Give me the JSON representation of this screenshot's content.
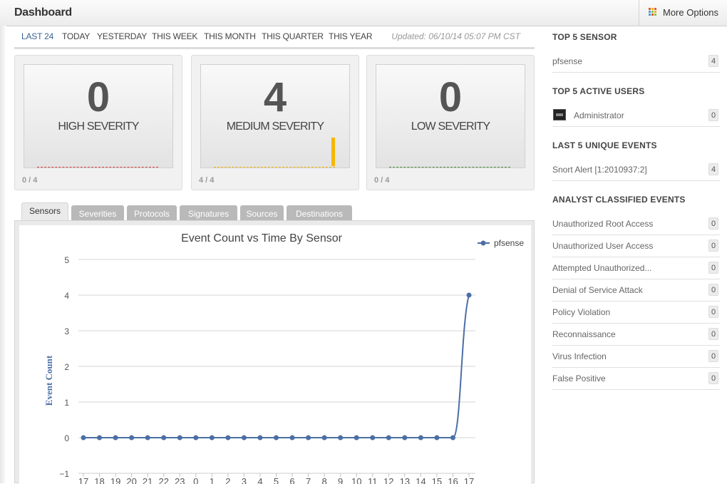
{
  "header": {
    "title": "Dashboard",
    "more_options_label": "More Options",
    "more_options_icon": "grid-icon",
    "grid_colors": [
      "#e05a2b",
      "#f3b21a",
      "#e05a2b",
      "#4f9ad8",
      "#8cc43f",
      "#f3b21a",
      "#4f9ad8",
      "#e05a2b",
      "#8cc43f"
    ]
  },
  "time_nav": {
    "items": [
      "LAST 24",
      "TODAY",
      "YESTERDAY",
      "THIS WEEK",
      "THIS MONTH",
      "THIS QUARTER",
      "THIS YEAR"
    ],
    "active": "LAST 24",
    "updated": "Updated: 06/10/14 05:07 PM CST"
  },
  "severity_cards": [
    {
      "count": "0",
      "label": "HIGH SEVERITY",
      "ratio": "0 / 4",
      "color": "#d84040",
      "fill": 0
    },
    {
      "count": "4",
      "label": "MEDIUM SEVERITY",
      "ratio": "4 / 4",
      "color": "#f5b800",
      "fill": 1
    },
    {
      "count": "0",
      "label": "LOW SEVERITY",
      "ratio": "0 / 4",
      "color": "#4a8a3a",
      "fill": 0
    }
  ],
  "tabs": [
    "Sensors",
    "Severities",
    "Protocols",
    "Signatures",
    "Sources",
    "Destinations"
  ],
  "active_tab": "Sensors",
  "chart_data": {
    "type": "line",
    "title": "Event Count vs Time By Sensor",
    "ylabel": "Event Count",
    "xlabel": "",
    "categories": [
      "17",
      "18",
      "19",
      "20",
      "21",
      "22",
      "23",
      "0",
      "1",
      "2",
      "3",
      "4",
      "5",
      "6",
      "7",
      "8",
      "9",
      "10",
      "11",
      "12",
      "13",
      "14",
      "15",
      "16",
      "17"
    ],
    "series": [
      {
        "name": "pfsense",
        "values": [
          0,
          0,
          0,
          0,
          0,
          0,
          0,
          0,
          0,
          0,
          0,
          0,
          0,
          0,
          0,
          0,
          0,
          0,
          0,
          0,
          0,
          0,
          0,
          0,
          4
        ],
        "color": "#4b6fa5"
      }
    ],
    "ylim": [
      -1,
      5
    ],
    "yticks": [
      -1,
      0,
      1,
      2,
      3,
      4,
      5
    ],
    "grid": true,
    "legend": "top-right"
  },
  "sidebar": {
    "top5_sensor": {
      "title": "TOP 5 SENSOR",
      "rows": [
        {
          "label": "pfsense",
          "count": "4"
        }
      ]
    },
    "top5_users": {
      "title": "TOP 5 ACTIVE USERS",
      "rows": [
        {
          "label": "Administrator",
          "count": "0",
          "icon": "user-avatar-icon"
        }
      ]
    },
    "last5_events": {
      "title": "LAST 5 UNIQUE EVENTS",
      "rows": [
        {
          "label": "Snort Alert [1:2010937:2]",
          "count": "4"
        }
      ]
    },
    "classified": {
      "title": "ANALYST CLASSIFIED EVENTS",
      "rows": [
        {
          "label": "Unauthorized Root Access",
          "count": "0"
        },
        {
          "label": "Unauthorized User Access",
          "count": "0"
        },
        {
          "label": "Attempted Unauthorized...",
          "count": "0"
        },
        {
          "label": "Denial of Service Attack",
          "count": "0"
        },
        {
          "label": "Policy Violation",
          "count": "0"
        },
        {
          "label": "Reconnaissance",
          "count": "0"
        },
        {
          "label": "Virus Infection",
          "count": "0"
        },
        {
          "label": "False Positive",
          "count": "0"
        }
      ]
    }
  }
}
